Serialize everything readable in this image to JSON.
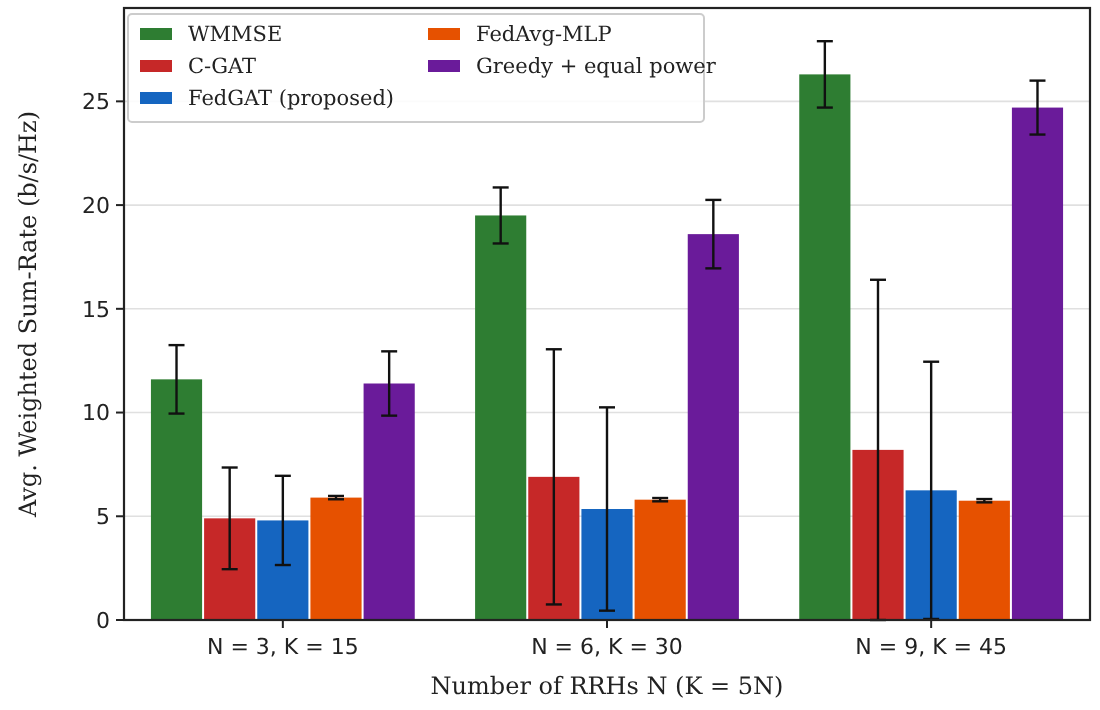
{
  "chart_data": {
    "type": "bar",
    "xlabel": "Number of RRHs N  (K = 5N)",
    "ylabel": "Avg. Weighted Sum-Rate (b/s/Hz)",
    "categories": [
      "N = 3,  K = 15",
      "N = 6,  K = 30",
      "N = 9,  K = 45"
    ],
    "series": [
      {
        "name": "WMMSE",
        "color": "#2e7d32",
        "values": [
          11.6,
          19.5,
          26.3
        ],
        "errors": [
          1.65,
          1.35,
          1.6
        ]
      },
      {
        "name": "C-GAT",
        "color": "#c62828",
        "values": [
          4.9,
          6.9,
          8.2
        ],
        "errors": [
          2.45,
          6.15,
          8.2
        ]
      },
      {
        "name": "FedGAT (proposed)",
        "color": "#1565c0",
        "values": [
          4.8,
          5.35,
          6.25
        ],
        "errors": [
          2.15,
          4.9,
          6.2
        ]
      },
      {
        "name": "FedAvg-MLP",
        "color": "#e65100",
        "values": [
          5.9,
          5.8,
          5.75
        ],
        "errors": [
          0.08,
          0.08,
          0.08
        ]
      },
      {
        "name": "Greedy + equal power",
        "color": "#6a1b9a",
        "values": [
          11.4,
          18.6,
          24.7
        ],
        "errors": [
          1.55,
          1.65,
          1.3
        ]
      }
    ],
    "ylim": [
      0,
      29.5
    ],
    "yticks": [
      0,
      5,
      10,
      15,
      20,
      25
    ],
    "grid": "y",
    "legend": "top left"
  }
}
